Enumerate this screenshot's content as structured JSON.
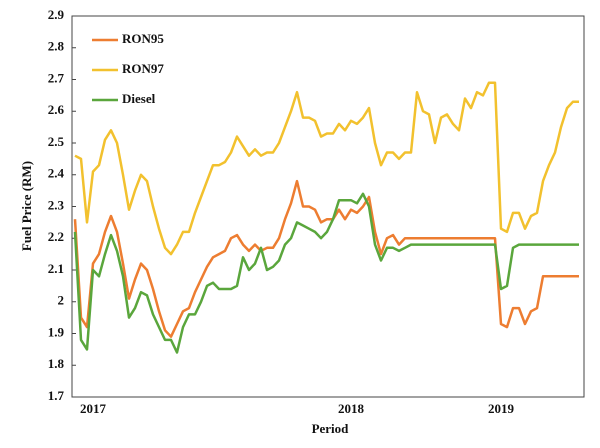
{
  "chart_data": {
    "type": "line",
    "xlabel": "Period",
    "ylabel": "Fuel Price (RM)",
    "categories": [
      null,
      null,
      null,
      "2017",
      null,
      null,
      null,
      null,
      null,
      null,
      null,
      null,
      null,
      null,
      null,
      null,
      null,
      null,
      null,
      null,
      null,
      null,
      null,
      null,
      null,
      null,
      null,
      null,
      null,
      null,
      null,
      null,
      null,
      null,
      null,
      null,
      null,
      null,
      null,
      null,
      null,
      null,
      null,
      null,
      null,
      null,
      "2018",
      null,
      null,
      null,
      null,
      null,
      null,
      null,
      null,
      null,
      null,
      null,
      null,
      null,
      null,
      null,
      null,
      null,
      null,
      null,
      null,
      null,
      null,
      null,
      null,
      "2019",
      null,
      null,
      null,
      null,
      null,
      null,
      null,
      null,
      null,
      null,
      null,
      null,
      null
    ],
    "series": [
      {
        "name": "RON95",
        "color": "#ed7d31",
        "values": [
          2.26,
          1.95,
          1.92,
          2.12,
          2.15,
          2.22,
          2.27,
          2.22,
          2.12,
          2.01,
          2.07,
          2.12,
          2.1,
          2.04,
          1.97,
          1.91,
          1.89,
          1.93,
          1.97,
          1.98,
          2.03,
          2.07,
          2.11,
          2.14,
          2.15,
          2.16,
          2.2,
          2.21,
          2.18,
          2.16,
          2.18,
          2.16,
          2.17,
          2.17,
          2.2,
          2.26,
          2.31,
          2.38,
          2.3,
          2.3,
          2.29,
          2.25,
          2.26,
          2.26,
          2.29,
          2.26,
          2.29,
          2.28,
          2.3,
          2.33,
          2.22,
          2.15,
          2.2,
          2.21,
          2.18,
          2.2,
          2.2,
          2.2,
          2.2,
          2.2,
          2.2,
          2.2,
          2.2,
          2.2,
          2.2,
          2.2,
          2.2,
          2.2,
          2.2,
          2.2,
          2.2,
          1.93,
          1.92,
          1.98,
          1.98,
          1.93,
          1.97,
          1.98,
          2.08,
          2.08,
          2.08,
          2.08,
          2.08,
          2.08,
          2.08
        ]
      },
      {
        "name": "RON97",
        "color": "#f2c12e",
        "values": [
          2.46,
          2.45,
          2.25,
          2.41,
          2.43,
          2.51,
          2.54,
          2.5,
          2.4,
          2.29,
          2.35,
          2.4,
          2.38,
          2.3,
          2.23,
          2.17,
          2.15,
          2.18,
          2.22,
          2.22,
          2.28,
          2.33,
          2.38,
          2.43,
          2.43,
          2.44,
          2.47,
          2.52,
          2.49,
          2.46,
          2.48,
          2.46,
          2.47,
          2.47,
          2.5,
          2.55,
          2.6,
          2.66,
          2.58,
          2.58,
          2.57,
          2.52,
          2.53,
          2.53,
          2.56,
          2.54,
          2.57,
          2.56,
          2.58,
          2.61,
          2.5,
          2.43,
          2.47,
          2.47,
          2.45,
          2.47,
          2.47,
          2.66,
          2.6,
          2.59,
          2.5,
          2.58,
          2.59,
          2.56,
          2.54,
          2.64,
          2.61,
          2.66,
          2.65,
          2.69,
          2.69,
          2.23,
          2.22,
          2.28,
          2.28,
          2.23,
          2.27,
          2.28,
          2.38,
          2.43,
          2.47,
          2.55,
          2.61,
          2.63,
          2.63
        ]
      },
      {
        "name": "Diesel",
        "color": "#5aa63c",
        "values": [
          2.22,
          1.88,
          1.85,
          2.1,
          2.08,
          2.15,
          2.21,
          2.16,
          2.08,
          1.95,
          1.98,
          2.03,
          2.02,
          1.96,
          1.92,
          1.88,
          1.88,
          1.84,
          1.92,
          1.96,
          1.96,
          2.0,
          2.05,
          2.06,
          2.04,
          2.04,
          2.04,
          2.05,
          2.14,
          2.1,
          2.12,
          2.17,
          2.1,
          2.11,
          2.13,
          2.18,
          2.2,
          2.25,
          2.24,
          2.23,
          2.22,
          2.2,
          2.22,
          2.26,
          2.32,
          2.32,
          2.32,
          2.31,
          2.34,
          2.3,
          2.18,
          2.13,
          2.17,
          2.17,
          2.16,
          2.17,
          2.18,
          2.18,
          2.18,
          2.18,
          2.18,
          2.18,
          2.18,
          2.18,
          2.18,
          2.18,
          2.18,
          2.18,
          2.18,
          2.18,
          2.18,
          2.04,
          2.05,
          2.17,
          2.18,
          2.18,
          2.18,
          2.18,
          2.18,
          2.18,
          2.18,
          2.18,
          2.18,
          2.18,
          2.18
        ]
      }
    ],
    "ylim": [
      1.7,
      2.9
    ],
    "yticks": [
      1.7,
      1.8,
      1.9,
      2,
      2.1,
      2.2,
      2.3,
      2.4,
      2.5,
      2.6,
      2.7,
      2.8,
      2.9
    ],
    "grid": false,
    "legend": "upper left"
  }
}
